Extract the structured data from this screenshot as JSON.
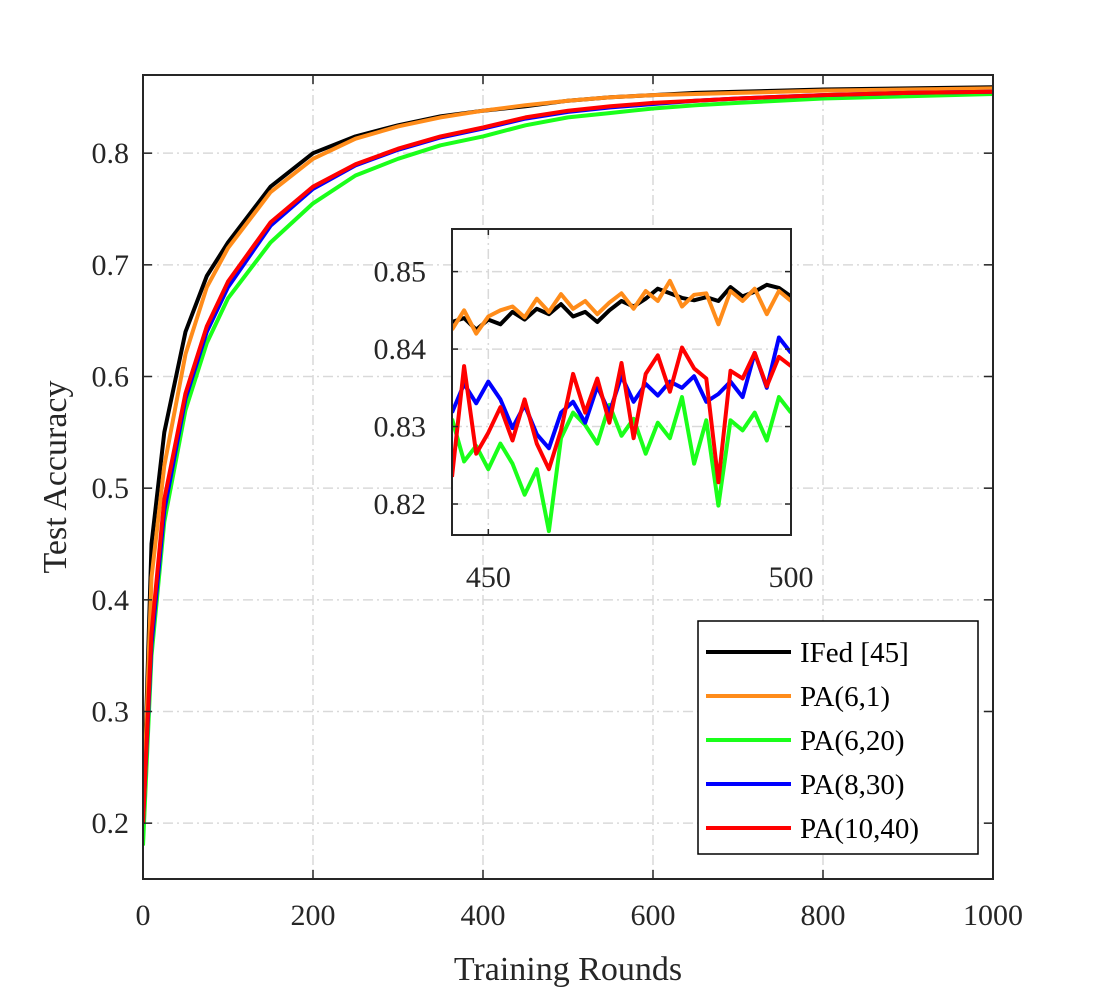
{
  "chart_data": [
    {
      "id": "main",
      "type": "line",
      "title": "",
      "xlabel": "Training Rounds",
      "ylabel": "Test Accuracy",
      "xlim": [
        0,
        1000
      ],
      "ylim": [
        0.15,
        0.87
      ],
      "xticks": [
        0,
        200,
        400,
        600,
        800,
        1000
      ],
      "xtick_labels": [
        "0",
        "200",
        "400",
        "600",
        "800",
        "1000"
      ],
      "yticks": [
        0.2,
        0.3,
        0.4,
        0.5,
        0.6,
        0.7,
        0.8
      ],
      "ytick_labels": [
        "0.2",
        "0.3",
        "0.4",
        "0.5",
        "0.6",
        "0.7",
        "0.8"
      ],
      "grid": true,
      "legend_position": "bottom-right",
      "series": [
        {
          "name": "IFed [45]",
          "color": "#000000",
          "x": [
            0,
            10,
            25,
            50,
            75,
            100,
            150,
            200,
            250,
            300,
            350,
            400,
            450,
            500,
            550,
            600,
            650,
            700,
            800,
            900,
            1000
          ],
          "values": [
            0.2,
            0.45,
            0.55,
            0.64,
            0.69,
            0.72,
            0.77,
            0.8,
            0.815,
            0.825,
            0.833,
            0.838,
            0.842,
            0.847,
            0.85,
            0.852,
            0.854,
            0.855,
            0.857,
            0.858,
            0.859
          ]
        },
        {
          "name": "PA(6,1)",
          "color": "#ff8c1a",
          "x": [
            0,
            10,
            25,
            50,
            75,
            100,
            150,
            200,
            250,
            300,
            350,
            400,
            450,
            500,
            550,
            600,
            650,
            700,
            800,
            900,
            1000
          ],
          "values": [
            0.2,
            0.42,
            0.52,
            0.62,
            0.68,
            0.715,
            0.765,
            0.795,
            0.813,
            0.824,
            0.832,
            0.838,
            0.843,
            0.847,
            0.85,
            0.852,
            0.853,
            0.854,
            0.856,
            0.857,
            0.858
          ]
        },
        {
          "name": "PA(6,20)",
          "color": "#1aff1a",
          "x": [
            0,
            10,
            25,
            50,
            75,
            100,
            150,
            200,
            250,
            300,
            350,
            400,
            450,
            500,
            550,
            600,
            650,
            700,
            800,
            900,
            1000
          ],
          "values": [
            0.18,
            0.35,
            0.47,
            0.57,
            0.63,
            0.67,
            0.72,
            0.755,
            0.78,
            0.795,
            0.807,
            0.815,
            0.825,
            0.832,
            0.836,
            0.84,
            0.843,
            0.845,
            0.849,
            0.851,
            0.853
          ]
        },
        {
          "name": "PA(8,30)",
          "color": "#0000ff",
          "x": [
            0,
            10,
            25,
            50,
            75,
            100,
            150,
            200,
            250,
            300,
            350,
            400,
            450,
            500,
            550,
            600,
            650,
            700,
            800,
            900,
            1000
          ],
          "values": [
            0.2,
            0.36,
            0.48,
            0.58,
            0.64,
            0.68,
            0.735,
            0.768,
            0.789,
            0.803,
            0.814,
            0.822,
            0.831,
            0.837,
            0.841,
            0.844,
            0.847,
            0.849,
            0.852,
            0.854,
            0.855
          ]
        },
        {
          "name": "PA(10,40)",
          "color": "#ff0000",
          "x": [
            0,
            10,
            25,
            50,
            75,
            100,
            150,
            200,
            250,
            300,
            350,
            400,
            450,
            500,
            550,
            600,
            650,
            700,
            800,
            900,
            1000
          ],
          "values": [
            0.2,
            0.37,
            0.49,
            0.585,
            0.645,
            0.685,
            0.738,
            0.77,
            0.79,
            0.804,
            0.815,
            0.823,
            0.832,
            0.838,
            0.842,
            0.845,
            0.847,
            0.849,
            0.852,
            0.854,
            0.855
          ]
        }
      ]
    },
    {
      "id": "inset",
      "type": "line",
      "title": "",
      "xlabel": "",
      "ylabel": "",
      "xlim": [
        444,
        500
      ],
      "ylim": [
        0.816,
        0.8555
      ],
      "xticks": [
        450,
        500
      ],
      "xtick_labels": [
        "450",
        "500"
      ],
      "yticks": [
        0.82,
        0.83,
        0.84,
        0.85
      ],
      "ytick_labels": [
        "0.82",
        "0.83",
        "0.84",
        "0.85"
      ],
      "grid": true,
      "series": [
        {
          "name": "IFed [45]",
          "color": "#000000",
          "x": [
            444,
            446,
            448,
            450,
            452,
            454,
            456,
            458,
            460,
            462,
            464,
            466,
            468,
            470,
            472,
            474,
            476,
            478,
            480,
            482,
            484,
            486,
            488,
            490,
            492,
            494,
            496,
            498,
            500
          ],
          "values": [
            0.8435,
            0.844,
            0.8425,
            0.8438,
            0.8432,
            0.8448,
            0.8438,
            0.8452,
            0.8445,
            0.8458,
            0.8442,
            0.8448,
            0.8435,
            0.845,
            0.8462,
            0.8455,
            0.8465,
            0.8478,
            0.8472,
            0.8466,
            0.8463,
            0.8467,
            0.8462,
            0.848,
            0.8468,
            0.8474,
            0.8483,
            0.8479,
            0.8468
          ]
        },
        {
          "name": "PA(6,1)",
          "color": "#ff8c1a",
          "x": [
            444,
            446,
            448,
            450,
            452,
            454,
            456,
            458,
            460,
            462,
            464,
            466,
            468,
            470,
            472,
            474,
            476,
            478,
            480,
            482,
            484,
            486,
            488,
            490,
            492,
            494,
            496,
            498,
            500
          ],
          "values": [
            0.8425,
            0.845,
            0.842,
            0.8442,
            0.845,
            0.8455,
            0.8441,
            0.8465,
            0.8448,
            0.8471,
            0.8452,
            0.8462,
            0.8445,
            0.846,
            0.8472,
            0.8452,
            0.8475,
            0.8462,
            0.8488,
            0.8455,
            0.847,
            0.8472,
            0.8432,
            0.8475,
            0.8462,
            0.8478,
            0.8445,
            0.8475,
            0.8462
          ]
        },
        {
          "name": "PA(6,20)",
          "color": "#1aff1a",
          "x": [
            444,
            446,
            448,
            450,
            452,
            454,
            456,
            458,
            460,
            462,
            464,
            466,
            468,
            470,
            472,
            474,
            476,
            478,
            480,
            482,
            484,
            486,
            488,
            490,
            492,
            494,
            496,
            498,
            500
          ],
          "values": [
            0.831,
            0.8255,
            0.8275,
            0.8245,
            0.8278,
            0.8252,
            0.8212,
            0.8245,
            0.8165,
            0.8285,
            0.8318,
            0.8302,
            0.8278,
            0.8328,
            0.8288,
            0.831,
            0.8265,
            0.8305,
            0.8285,
            0.8338,
            0.8252,
            0.8308,
            0.8198,
            0.8308,
            0.8295,
            0.8318,
            0.8282,
            0.8338,
            0.8318
          ]
        },
        {
          "name": "PA(8,30)",
          "color": "#0000ff",
          "x": [
            444,
            446,
            448,
            450,
            452,
            454,
            456,
            458,
            460,
            462,
            464,
            466,
            468,
            470,
            472,
            474,
            476,
            478,
            480,
            482,
            484,
            486,
            488,
            490,
            492,
            494,
            496,
            498,
            500
          ],
          "values": [
            0.8318,
            0.8355,
            0.833,
            0.8358,
            0.8335,
            0.8298,
            0.8328,
            0.829,
            0.8272,
            0.8318,
            0.8332,
            0.8305,
            0.8352,
            0.8318,
            0.8365,
            0.8332,
            0.8355,
            0.834,
            0.8358,
            0.835,
            0.8365,
            0.8332,
            0.8342,
            0.8358,
            0.8338,
            0.8395,
            0.835,
            0.8415,
            0.8395
          ]
        },
        {
          "name": "PA(10,40)",
          "color": "#ff0000",
          "x": [
            444,
            446,
            448,
            450,
            452,
            454,
            456,
            458,
            460,
            462,
            464,
            466,
            468,
            470,
            472,
            474,
            476,
            478,
            480,
            482,
            484,
            486,
            488,
            490,
            492,
            494,
            496,
            498,
            500
          ],
          "values": [
            0.8235,
            0.8378,
            0.8265,
            0.8292,
            0.8325,
            0.8282,
            0.8335,
            0.8278,
            0.8245,
            0.8295,
            0.8368,
            0.8318,
            0.8362,
            0.8305,
            0.8382,
            0.8285,
            0.8368,
            0.8392,
            0.8345,
            0.8402,
            0.8375,
            0.8362,
            0.8228,
            0.8372,
            0.8362,
            0.8395,
            0.8352,
            0.839,
            0.8378
          ]
        }
      ]
    }
  ]
}
